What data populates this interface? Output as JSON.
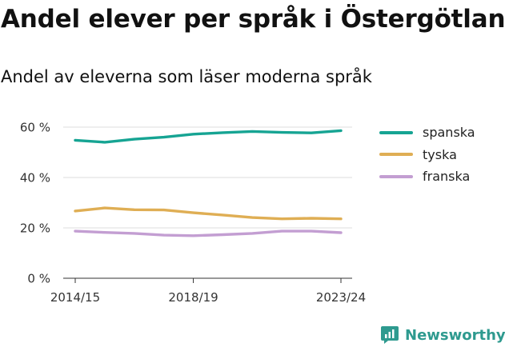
{
  "title": "Andel elever per språk i Östergötland",
  "subtitle": "Andel av eleverna som läser moderna språk",
  "brand": {
    "name": "Newsworthy",
    "icon": "bar-chart-logo-icon",
    "color": "#2e9a8f"
  },
  "chart_data": {
    "type": "line",
    "title": "Andel elever per språk i Östergötland",
    "subtitle": "Andel av eleverna som läser moderna språk",
    "x": [
      "2014/15",
      "2015/16",
      "2016/17",
      "2017/18",
      "2018/19",
      "2019/20",
      "2020/21",
      "2021/22",
      "2022/23",
      "2023/24"
    ],
    "x_tick_labels": [
      "2014/15",
      "2018/19",
      "2023/24"
    ],
    "y_ticks": [
      0,
      20,
      40,
      60
    ],
    "y_tick_labels": [
      "0 %",
      "20 %",
      "40 %",
      "60 %"
    ],
    "ylim": [
      0,
      60
    ],
    "grid": true,
    "legend_position": "right",
    "series": [
      {
        "name": "spanska",
        "color": "#16a493",
        "values": [
          54.8,
          54.0,
          55.2,
          56.0,
          57.2,
          57.8,
          58.3,
          57.9,
          57.7,
          58.6
        ]
      },
      {
        "name": "tyska",
        "color": "#dfae54",
        "values": [
          26.7,
          27.9,
          27.2,
          27.1,
          26.0,
          25.1,
          24.1,
          23.6,
          23.8,
          23.6
        ]
      },
      {
        "name": "franska",
        "color": "#c39ed2",
        "values": [
          18.7,
          18.2,
          17.8,
          17.1,
          16.9,
          17.3,
          17.8,
          18.7,
          18.7,
          18.1
        ]
      }
    ]
  }
}
